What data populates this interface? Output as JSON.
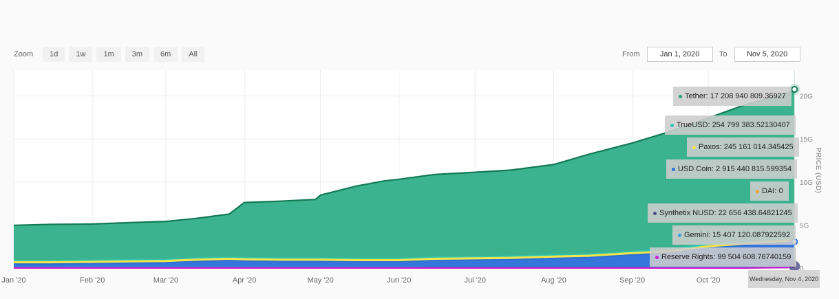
{
  "zoom": {
    "label": "Zoom",
    "buttons": [
      "1d",
      "1w",
      "1m",
      "3m",
      "6m",
      "All"
    ]
  },
  "range": {
    "from_label": "From",
    "from_value": "Jan 1, 2020",
    "to_label": "To",
    "to_value": "Nov 5, 2020"
  },
  "tooltip": {
    "date": "Wednesday, Nov 4, 2020",
    "items": [
      {
        "name": "Tether",
        "value": "17 208 940 809.36927",
        "color": "#2a9d6e"
      },
      {
        "name": "TrueUSD",
        "value": "254 799 383.52130407",
        "color": "#2fc4b2"
      },
      {
        "name": "Paxos",
        "value": "245 161 014.345425",
        "color": "#f5e642"
      },
      {
        "name": "USD Coin",
        "value": "2 915 440 815.599354",
        "color": "#2b6fd8"
      },
      {
        "name": "DAI",
        "value": "0",
        "color": "#f5a623"
      },
      {
        "name": "Synthetix NUSD",
        "value": "22 656 438.64821245",
        "color": "#4a4a8a"
      },
      {
        "name": "Gemini",
        "value": "15 407 120.087922592",
        "color": "#3a9ad9"
      },
      {
        "name": "Reserve Rights",
        "value": "99 504 608.76740159",
        "color": "#d61ad6"
      }
    ]
  },
  "chart_data": {
    "type": "area",
    "stacked": true,
    "x": [
      "2020-01-01",
      "2020-01-15",
      "2020-02-01",
      "2020-02-15",
      "2020-03-01",
      "2020-03-13",
      "2020-03-26",
      "2020-04-01",
      "2020-04-15",
      "2020-04-29",
      "2020-05-01",
      "2020-05-15",
      "2020-05-26",
      "2020-06-01",
      "2020-06-15",
      "2020-07-01",
      "2020-07-15",
      "2020-08-01",
      "2020-08-15",
      "2020-09-01",
      "2020-09-15",
      "2020-10-01",
      "2020-10-15",
      "2020-11-01",
      "2020-11-04"
    ],
    "series": [
      {
        "name": "Reserve Rights",
        "color": "#d61ad6",
        "values": [
          0,
          0,
          0,
          0,
          0,
          0,
          0,
          0,
          0,
          0,
          0,
          0,
          0,
          0,
          0,
          0,
          0,
          0,
          0,
          0,
          0,
          0,
          0,
          0.05,
          0.1
        ]
      },
      {
        "name": "Synthetix NUSD",
        "color": "#4a4a8a",
        "values": [
          0.01,
          0.01,
          0.01,
          0.01,
          0.01,
          0.01,
          0.01,
          0.01,
          0.01,
          0.01,
          0.01,
          0.01,
          0.01,
          0.01,
          0.02,
          0.02,
          0.02,
          0.02,
          0.02,
          0.02,
          0.02,
          0.02,
          0.02,
          0.02,
          0.02
        ]
      },
      {
        "name": "Gemini",
        "color": "#3a9ad9",
        "values": [
          0.01,
          0.01,
          0.01,
          0.01,
          0.01,
          0.01,
          0.01,
          0.01,
          0.01,
          0.01,
          0.01,
          0.01,
          0.01,
          0.01,
          0.01,
          0.01,
          0.01,
          0.01,
          0.01,
          0.01,
          0.01,
          0.01,
          0.01,
          0.02,
          0.02
        ]
      },
      {
        "name": "DAI",
        "color": "#f5a623",
        "values": [
          0,
          0,
          0,
          0,
          0,
          0,
          0,
          0,
          0,
          0,
          0,
          0,
          0,
          0,
          0,
          0,
          0,
          0,
          0,
          0,
          0,
          0,
          0,
          0,
          0
        ]
      },
      {
        "name": "USD Coin",
        "color": "#2b6fd8",
        "values": [
          0.45,
          0.45,
          0.5,
          0.55,
          0.6,
          0.75,
          0.85,
          0.8,
          0.75,
          0.75,
          0.75,
          0.7,
          0.7,
          0.7,
          0.85,
          0.9,
          0.95,
          1.1,
          1.2,
          1.5,
          1.7,
          2.3,
          2.6,
          2.9,
          2.92
        ]
      },
      {
        "name": "Paxos",
        "color": "#f5e642",
        "values": [
          0.25,
          0.25,
          0.25,
          0.25,
          0.25,
          0.25,
          0.25,
          0.25,
          0.25,
          0.25,
          0.25,
          0.25,
          0.25,
          0.25,
          0.25,
          0.25,
          0.25,
          0.25,
          0.25,
          0.25,
          0.25,
          0.25,
          0.25,
          0.25,
          0.25
        ]
      },
      {
        "name": "TrueUSD",
        "color": "#2fc4b2",
        "values": [
          0.15,
          0.15,
          0.15,
          0.15,
          0.15,
          0.15,
          0.15,
          0.15,
          0.15,
          0.15,
          0.15,
          0.15,
          0.15,
          0.15,
          0.15,
          0.15,
          0.15,
          0.15,
          0.15,
          0.15,
          0.2,
          0.25,
          0.25,
          0.25,
          0.25
        ]
      },
      {
        "name": "Tether",
        "color": "#2a9d6e",
        "values": [
          4.1,
          4.2,
          4.2,
          4.3,
          4.4,
          4.6,
          5.0,
          6.4,
          6.6,
          6.8,
          7.3,
          8.4,
          9.0,
          9.2,
          9.6,
          9.8,
          10.0,
          10.5,
          11.6,
          12.6,
          13.6,
          14.6,
          15.8,
          16.8,
          17.2
        ]
      }
    ],
    "x_ticks": [
      "Jan '20",
      "Feb '20",
      "Mar '20",
      "Apr '20",
      "May '20",
      "Jun '20",
      "Jul '20",
      "Aug '20",
      "Sep '20",
      "Oct '20"
    ],
    "x_tick_dates": [
      "2020-01-01",
      "2020-02-01",
      "2020-03-01",
      "2020-04-01",
      "2020-05-01",
      "2020-06-01",
      "2020-07-01",
      "2020-08-01",
      "2020-09-01",
      "2020-10-01"
    ],
    "y_ticks": [
      "0",
      "5G",
      "10G",
      "15G",
      "20G"
    ],
    "y_tick_values": [
      0,
      5,
      10,
      15,
      20
    ],
    "ylim": [
      0,
      23
    ],
    "xlim": [
      "2020-01-01",
      "2020-11-05"
    ],
    "ylabel": "PRICE (USD)",
    "grid": true,
    "axis_side": "right"
  }
}
